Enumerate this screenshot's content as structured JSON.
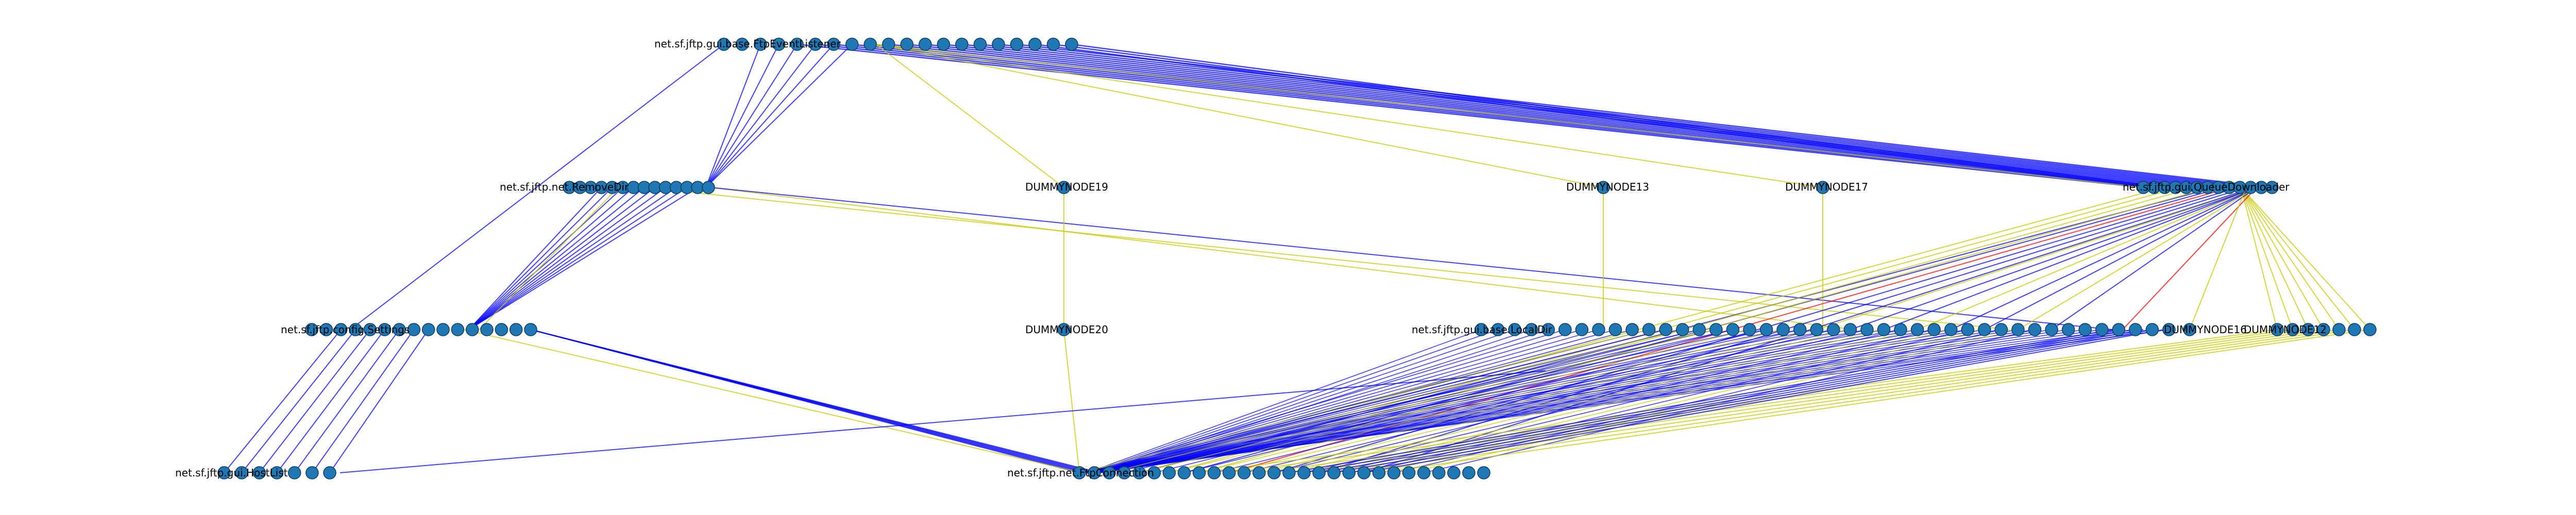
{
  "graph": {
    "colors": {
      "node": "#1f77b4",
      "edge_blue": "#0000ff",
      "edge_yellow": "#c8c800",
      "edge_red": "#ff0000"
    },
    "labels": {
      "listener": "net.sf.jftp.gui.base.FtpEventListener",
      "removedir": "net.sf.jftp.net.RemoveDir",
      "dummy19": "DUMMYNODE19",
      "dummy20": "DUMMYNODE20",
      "dummy13": "DUMMYNODE13",
      "dummy17": "DUMMYNODE17",
      "queue": "net.sf.jftp.gui.QueueDownloader",
      "settings": "net.sf.jftp.config.Settings",
      "dummy16": "DUMMYNODE16",
      "dummy12": "DUMMYNODE12",
      "host": "net.sf.jftp.gui.HostList",
      "connection": "net.sf.jftp.net.FtpConnection",
      "r2left": "net.sf.jftp.gui.base.LocalDir"
    }
  }
}
